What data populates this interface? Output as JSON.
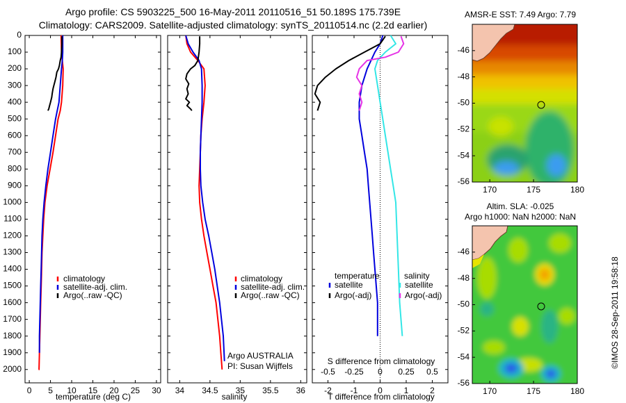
{
  "title": {
    "line1": "Argo profile: CS 5903225_500 16-May-2011 20110516_51 50.189S 175.739E",
    "line2": "Climatology: CARS2009. Satellite-adjusted climatology: synTS_20110514.nc (2.2d earlier)"
  },
  "side_label": "©IMOS 28-Sep-2011 19:58:18",
  "colors": {
    "climatology": "#ff0000",
    "satellite": "#0000dd",
    "argo": "#000000",
    "salinity_sat": "#33e6e6",
    "salinity_argo": "#e633e6",
    "land": "#f4c4ae",
    "land_edge": "#6b3d2a"
  },
  "chart_data": [
    {
      "id": "temperature",
      "type": "line",
      "xlabel": "temperature (deg C)",
      "ylabel": "",
      "xlim": [
        -1,
        31
      ],
      "ylim": [
        2080,
        0
      ],
      "xticks": [
        0,
        5,
        10,
        15,
        20,
        25,
        30
      ],
      "yticks": [
        0,
        100,
        200,
        300,
        400,
        500,
        600,
        700,
        800,
        900,
        1000,
        1100,
        1200,
        1300,
        1400,
        1500,
        1600,
        1700,
        1800,
        1900,
        2000
      ],
      "legend": [
        "climatology",
        "satellite-adj. clim.",
        "Argo(..raw -QC)"
      ],
      "series": [
        {
          "name": "climatology",
          "color": "#ff0000",
          "x": [
            7.5,
            7.6,
            7.8,
            8.0,
            7.9,
            7.6,
            7.3,
            6.8,
            6.2,
            5.6,
            4.9,
            4.2,
            3.7,
            3.4,
            3.2,
            3.0,
            2.9,
            2.8,
            2.7,
            2.6,
            2.5,
            2.4,
            2.3,
            2.2
          ],
          "y": [
            0,
            100,
            150,
            200,
            300,
            400,
            450,
            500,
            600,
            700,
            800,
            900,
            1000,
            1100,
            1200,
            1300,
            1400,
            1500,
            1600,
            1700,
            1800,
            1900,
            2000,
            2000
          ]
        },
        {
          "name": "satellite-adj. clim.",
          "color": "#0000dd",
          "x": [
            7.9,
            7.9,
            7.8,
            7.6,
            7.3,
            7.0,
            6.6,
            6.2,
            5.6,
            5.0,
            4.4,
            3.9,
            3.5,
            3.2,
            3.0,
            2.9,
            2.8,
            2.7,
            2.6,
            2.5,
            2.4,
            2.4
          ],
          "y": [
            0,
            100,
            150,
            200,
            300,
            400,
            450,
            500,
            600,
            700,
            800,
            900,
            1000,
            1100,
            1200,
            1300,
            1400,
            1500,
            1600,
            1700,
            1800,
            1900
          ]
        },
        {
          "name": "Argo(..raw -QC)",
          "color": "#000000",
          "x": [
            7.7,
            7.7,
            7.6,
            7.5,
            7.3,
            7.1,
            6.9,
            6.5,
            6.3,
            6.0,
            5.8,
            5.6,
            5.4,
            5.3,
            5.0,
            4.8,
            4.6,
            4.4
          ],
          "y": [
            5,
            50,
            100,
            130,
            150,
            180,
            200,
            220,
            250,
            280,
            300,
            320,
            350,
            370,
            400,
            420,
            440,
            450
          ]
        }
      ]
    },
    {
      "id": "salinity",
      "type": "line",
      "xlabel": "salinity",
      "ylabel": "",
      "xlim": [
        33.8,
        36.1
      ],
      "ylim": [
        2080,
        0
      ],
      "xticks": [
        34,
        34.5,
        35,
        35.5,
        36
      ],
      "legend": [
        "climatology",
        "satellite-adj. clim.",
        "Argo(..raw -QC)"
      ],
      "annotation_line1": "Argo AUSTRALIA",
      "annotation_line2": "PI: Susan Wijffels",
      "series": [
        {
          "name": "climatology",
          "color": "#ff0000",
          "x": [
            34.1,
            34.12,
            34.18,
            34.3,
            34.4,
            34.42,
            34.4,
            34.37,
            34.35,
            34.34,
            34.33,
            34.32,
            34.33,
            34.36,
            34.4,
            34.45,
            34.5,
            34.55,
            34.6,
            34.63,
            34.66,
            34.68,
            34.7
          ],
          "y": [
            0,
            50,
            100,
            150,
            200,
            300,
            400,
            500,
            600,
            700,
            800,
            900,
            1000,
            1100,
            1200,
            1300,
            1400,
            1500,
            1600,
            1700,
            1800,
            1900,
            2000
          ]
        },
        {
          "name": "satellite-adj. clim.",
          "color": "#0000dd",
          "x": [
            34.1,
            34.14,
            34.22,
            34.32,
            34.36,
            34.37,
            34.37,
            34.36,
            34.35,
            34.34,
            34.34,
            34.35,
            34.38,
            34.42,
            34.48,
            34.53,
            34.58,
            34.62,
            34.66,
            34.69,
            34.72,
            34.74
          ],
          "y": [
            0,
            50,
            100,
            150,
            200,
            300,
            400,
            500,
            600,
            700,
            800,
            900,
            1000,
            1100,
            1200,
            1300,
            1400,
            1500,
            1600,
            1700,
            1800,
            1950
          ]
        },
        {
          "name": "Argo(..raw -QC)",
          "color": "#000000",
          "x": [
            34.33,
            34.33,
            34.32,
            34.3,
            34.25,
            34.18,
            34.12,
            34.1,
            34.15,
            34.12,
            34.14,
            34.1,
            34.16,
            34.12,
            34.18,
            34.2
          ],
          "y": [
            5,
            50,
            100,
            150,
            180,
            200,
            230,
            260,
            290,
            320,
            350,
            380,
            400,
            420,
            440,
            450
          ]
        }
      ]
    },
    {
      "id": "difference",
      "type": "line",
      "xlabel": "T difference from climatology",
      "xlabel_top": "S difference from climatology",
      "xlim": [
        -2.6,
        2.6
      ],
      "ylim": [
        2080,
        0
      ],
      "xticks_T": [
        -2,
        -1,
        0,
        1,
        2
      ],
      "xticks_S": [
        "-0.5",
        "-0.25",
        "0",
        "0.25",
        "0.5"
      ],
      "xticks_S_pos": [
        -2,
        -1,
        0,
        1,
        2
      ],
      "legend_left_title": "temperature",
      "legend_right_title": "salinity",
      "legend_left": [
        "satellite",
        "Argo(-adj)"
      ],
      "legend_right": [
        "satellite",
        "Argo(-adj)"
      ],
      "series": [
        {
          "name": "T satellite",
          "color": "#0000dd",
          "x": [
            0.1,
            0.0,
            -0.2,
            -0.5,
            -0.7,
            -0.8,
            -0.8,
            -0.7,
            -0.6,
            -0.5,
            -0.45,
            -0.4,
            -0.35,
            -0.3,
            -0.25,
            -0.2,
            -0.15,
            -0.1,
            -0.1
          ],
          "y": [
            0,
            50,
            100,
            200,
            300,
            400,
            500,
            600,
            700,
            800,
            900,
            1000,
            1100,
            1200,
            1300,
            1400,
            1500,
            1600,
            1800
          ]
        },
        {
          "name": "T Argo",
          "color": "#000000",
          "x": [
            0.2,
            0.0,
            -0.6,
            -1.2,
            -1.7,
            -2.1,
            -2.4,
            -2.5,
            -2.3,
            -2.4
          ],
          "y": [
            5,
            50,
            100,
            150,
            200,
            250,
            300,
            350,
            400,
            450
          ]
        },
        {
          "name": "S satellite",
          "color": "#33e6e6",
          "x": [
            0.4,
            0.6,
            0.2,
            -0.1,
            -0.2,
            -0.1,
            0.0,
            0.1,
            0.2,
            0.3,
            0.4,
            0.5,
            0.6,
            0.65,
            0.7,
            0.75,
            0.8,
            0.85
          ],
          "y": [
            0,
            50,
            100,
            150,
            200,
            300,
            400,
            500,
            600,
            700,
            800,
            900,
            1000,
            1200,
            1400,
            1600,
            1700,
            1800
          ]
        },
        {
          "name": "S Argo",
          "color": "#e633e6",
          "x": [
            0.8,
            0.9,
            0.7,
            0.2,
            -0.5,
            -0.8,
            -0.9,
            -0.7,
            -0.8,
            -0.7,
            -0.8
          ],
          "y": [
            5,
            50,
            100,
            130,
            150,
            200,
            250,
            300,
            350,
            400,
            450
          ]
        }
      ]
    },
    {
      "id": "map_sst",
      "type": "heatmap",
      "title": "AMSR-E SST: 7.49 Argo: 7.79",
      "xlim": [
        168,
        180
      ],
      "ylim": [
        -56,
        -44
      ],
      "xticks": [
        170,
        175,
        180
      ],
      "yticks": [
        -46,
        -48,
        -50,
        -52,
        -54,
        -56
      ],
      "marker": {
        "lon": 175.739,
        "lat": -50.189
      }
    },
    {
      "id": "map_sla",
      "type": "heatmap",
      "title_line1": "Altim. SLA: -0.025",
      "title_line2": "Argo h1000: NaN h2000: NaN",
      "xlim": [
        168,
        180
      ],
      "ylim": [
        -56,
        -44
      ],
      "xticks": [
        170,
        175,
        180
      ],
      "yticks": [
        -46,
        -48,
        -50,
        -52,
        -54,
        -56
      ],
      "marker": {
        "lon": 175.739,
        "lat": -50.189
      }
    }
  ]
}
